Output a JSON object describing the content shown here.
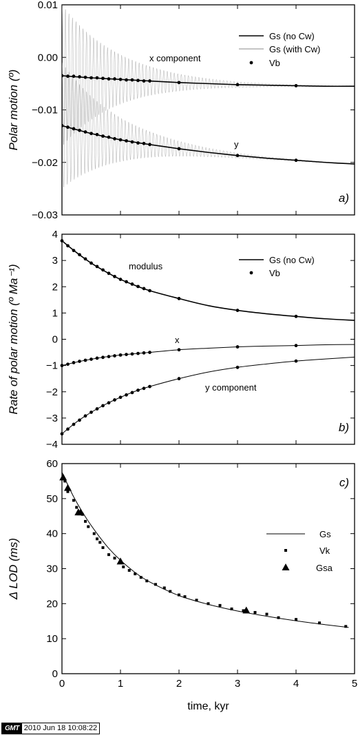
{
  "stamp": {
    "logo": "GMT",
    "text": "2010 Jun 18 10:08:22"
  },
  "colors": {
    "gs_no_cw": "#000000",
    "gs_with_cw": "#a0a0a0",
    "points": "#000000"
  },
  "chart_data": [
    {
      "type": "line",
      "panel_label": "a)",
      "ylabel": "Polar motion (º)",
      "xlabel": "",
      "xlim": [
        0,
        5
      ],
      "ylim": [
        -0.03,
        0.01
      ],
      "yticks": [
        0.01,
        0.0,
        -0.01,
        -0.02,
        -0.03
      ],
      "ytick_labels": [
        "0.01",
        "0.00",
        "−0.01",
        "−0.02",
        "−0.03"
      ],
      "xticks": [
        0,
        1,
        2,
        3,
        4,
        5
      ],
      "grid": false,
      "legend_position": "top-right",
      "legend": [
        "Gs (no Cw)",
        "Gs (with Cw)",
        "Vb"
      ],
      "annotations": [
        "x component",
        "y"
      ],
      "series": [
        {
          "name": "Gs (no Cw)",
          "component": "x",
          "x": [
            0,
            0.5,
            1,
            1.5,
            2,
            2.5,
            3,
            3.5,
            4,
            4.5,
            5
          ],
          "values": [
            -0.0035,
            -0.0039,
            -0.0042,
            -0.0045,
            -0.0048,
            -0.005,
            -0.0052,
            -0.0053,
            -0.0054,
            -0.0055,
            -0.0055
          ]
        },
        {
          "name": "Gs (no Cw)",
          "component": "y",
          "x": [
            0,
            0.5,
            1,
            1.5,
            2,
            2.5,
            3,
            3.5,
            4,
            4.5,
            5
          ],
          "values": [
            -0.013,
            -0.0145,
            -0.0157,
            -0.0166,
            -0.0174,
            -0.0181,
            -0.0187,
            -0.0192,
            -0.0196,
            -0.02,
            -0.0203
          ]
        },
        {
          "name": "Gs (with Cw)",
          "component": "x",
          "envelope_start": [
            -0.017,
            0.0095
          ],
          "decay_tau_kyr": 0.95,
          "oscillation_period_kyr": 0.06
        },
        {
          "name": "Gs (with Cw)",
          "component": "y",
          "envelope_start": [
            -0.025,
            -0.001
          ],
          "decay_tau_kyr": 0.95,
          "oscillation_period_kyr": 0.06
        },
        {
          "name": "Vb",
          "component": "x",
          "x": [
            0,
            0.1,
            0.2,
            0.3,
            0.4,
            0.5,
            0.6,
            0.7,
            0.8,
            0.9,
            1.0,
            1.1,
            1.2,
            1.3,
            1.4,
            1.5,
            2,
            3,
            4
          ],
          "values": [
            -0.0035,
            -0.0036,
            -0.0036,
            -0.0037,
            -0.0038,
            -0.0039,
            -0.0039,
            -0.004,
            -0.0041,
            -0.0041,
            -0.0042,
            -0.0043,
            -0.0043,
            -0.0044,
            -0.0045,
            -0.0045,
            -0.0048,
            -0.0052,
            -0.0054
          ]
        },
        {
          "name": "Vb",
          "component": "y",
          "x": [
            0,
            0.1,
            0.2,
            0.3,
            0.4,
            0.5,
            0.6,
            0.7,
            0.8,
            0.9,
            1.0,
            1.1,
            1.2,
            1.3,
            1.4,
            1.5,
            2,
            3,
            4
          ],
          "values": [
            -0.013,
            -0.0133,
            -0.0136,
            -0.0139,
            -0.0142,
            -0.0145,
            -0.0147,
            -0.015,
            -0.0152,
            -0.0155,
            -0.0157,
            -0.0159,
            -0.0161,
            -0.0163,
            -0.0164,
            -0.0166,
            -0.0174,
            -0.0187,
            -0.0196
          ]
        }
      ]
    },
    {
      "type": "line",
      "panel_label": "b)",
      "ylabel": "Rate of polar motion (º Ma⁻¹)",
      "xlabel": "",
      "xlim": [
        0,
        5
      ],
      "ylim": [
        -4,
        4
      ],
      "yticks": [
        4,
        3,
        2,
        1,
        0,
        -1,
        -2,
        -3,
        -4
      ],
      "ytick_labels": [
        "4",
        "3",
        "2",
        "1",
        "0",
        "−1",
        "−2",
        "−3",
        "−4"
      ],
      "xticks": [
        0,
        1,
        2,
        3,
        4,
        5
      ],
      "grid": false,
      "legend_position": "top-right",
      "legend": [
        "Gs (no Cw)",
        "Vb"
      ],
      "annotations": [
        "modulus",
        "x",
        "y component"
      ],
      "series": [
        {
          "name": "Gs (no Cw)",
          "component": "modulus",
          "x": [
            0,
            0.25,
            0.5,
            0.75,
            1,
            1.25,
            1.5,
            2,
            2.5,
            3,
            3.5,
            4,
            4.5,
            5
          ],
          "values": [
            3.75,
            3.3,
            2.9,
            2.57,
            2.28,
            2.05,
            1.85,
            1.55,
            1.28,
            1.1,
            0.97,
            0.87,
            0.78,
            0.72
          ]
        },
        {
          "name": "Gs (no Cw)",
          "component": "x",
          "x": [
            0,
            0.25,
            0.5,
            0.75,
            1,
            1.5,
            2,
            2.5,
            3,
            3.5,
            4,
            4.5,
            5
          ],
          "values": [
            -1.0,
            -0.87,
            -0.76,
            -0.67,
            -0.6,
            -0.5,
            -0.4,
            -0.34,
            -0.29,
            -0.26,
            -0.24,
            -0.21,
            -0.2
          ]
        },
        {
          "name": "Gs (no Cw)",
          "component": "y component",
          "x": [
            0,
            0.25,
            0.5,
            0.75,
            1,
            1.25,
            1.5,
            2,
            2.5,
            3,
            3.5,
            4,
            4.5,
            5
          ],
          "values": [
            -3.6,
            -3.15,
            -2.78,
            -2.47,
            -2.21,
            -1.98,
            -1.8,
            -1.5,
            -1.25,
            -1.07,
            -0.94,
            -0.83,
            -0.75,
            -0.68
          ]
        },
        {
          "name": "Vb",
          "component": "modulus",
          "x": [
            0,
            0.1,
            0.2,
            0.3,
            0.4,
            0.5,
            0.6,
            0.7,
            0.8,
            0.9,
            1.0,
            1.1,
            1.2,
            1.3,
            1.4,
            1.5,
            2,
            3,
            4
          ],
          "values": [
            3.75,
            3.56,
            3.38,
            3.22,
            3.06,
            2.9,
            2.77,
            2.64,
            2.51,
            2.39,
            2.28,
            2.19,
            2.1,
            2.01,
            1.93,
            1.85,
            1.55,
            1.1,
            0.87
          ]
        },
        {
          "name": "Vb",
          "component": "x",
          "x": [
            0,
            0.1,
            0.2,
            0.3,
            0.4,
            0.5,
            0.6,
            0.7,
            0.8,
            0.9,
            1.0,
            1.1,
            1.2,
            1.3,
            1.4,
            1.5,
            2,
            3,
            4
          ],
          "values": [
            -1.0,
            -0.95,
            -0.89,
            -0.84,
            -0.8,
            -0.76,
            -0.72,
            -0.69,
            -0.66,
            -0.63,
            -0.6,
            -0.58,
            -0.56,
            -0.54,
            -0.52,
            -0.5,
            -0.4,
            -0.29,
            -0.24
          ]
        },
        {
          "name": "Vb",
          "component": "y component",
          "x": [
            0,
            0.1,
            0.2,
            0.3,
            0.4,
            0.5,
            0.6,
            0.7,
            0.8,
            0.9,
            1.0,
            1.1,
            1.2,
            1.3,
            1.4,
            1.5,
            2,
            3,
            4
          ],
          "values": [
            -3.6,
            -3.42,
            -3.24,
            -3.08,
            -2.92,
            -2.78,
            -2.65,
            -2.53,
            -2.42,
            -2.31,
            -2.21,
            -2.12,
            -2.03,
            -1.94,
            -1.87,
            -1.8,
            -1.5,
            -1.07,
            -0.83
          ]
        }
      ]
    },
    {
      "type": "line",
      "panel_label": "c)",
      "ylabel": "Δ LOD (ms)",
      "xlabel": "time, kyr",
      "xlim": [
        0,
        5
      ],
      "ylim": [
        0,
        60
      ],
      "yticks": [
        60,
        50,
        40,
        30,
        20,
        10,
        0
      ],
      "ytick_labels": [
        "60",
        "50",
        "40",
        "30",
        "20",
        "10",
        "0"
      ],
      "xticks": [
        0,
        1,
        2,
        3,
        4,
        5
      ],
      "xtick_labels": [
        "0",
        "1",
        "2",
        "3",
        "4",
        "5"
      ],
      "grid": false,
      "legend_position": "right",
      "legend": [
        "Gs",
        "Vk",
        "Gsa"
      ],
      "series": [
        {
          "name": "Gs",
          "x": [
            0,
            0.2,
            0.4,
            0.6,
            0.8,
            1.0,
            1.25,
            1.5,
            2,
            2.5,
            3,
            3.5,
            4,
            4.5,
            4.9
          ],
          "values": [
            57.5,
            50.5,
            44.8,
            40.0,
            35.8,
            32.4,
            28.9,
            26.2,
            22.3,
            19.8,
            17.9,
            16.4,
            15.1,
            14.0,
            13.2
          ]
        },
        {
          "name": "Vk",
          "x": [
            0.05,
            0.1,
            0.2,
            0.25,
            0.35,
            0.4,
            0.45,
            0.55,
            0.6,
            0.65,
            0.7,
            0.8,
            0.9,
            1.05,
            1.15,
            1.25,
            1.35,
            1.45,
            1.6,
            1.75,
            1.85,
            2.0,
            2.1,
            2.3,
            2.5,
            2.7,
            2.9,
            3.1,
            3.3,
            3.5,
            3.7,
            4.0,
            4.4,
            4.85
          ],
          "values": [
            55.0,
            52.0,
            49.5,
            47.5,
            45.5,
            43.5,
            42.0,
            40.0,
            38.5,
            37.5,
            36.0,
            34.0,
            33.0,
            30.5,
            29.5,
            28.5,
            27.5,
            26.5,
            25.5,
            24.5,
            23.5,
            22.5,
            22.0,
            21.0,
            20.0,
            19.5,
            18.5,
            18.0,
            17.5,
            17.0,
            16.0,
            15.5,
            14.5,
            13.5
          ]
        },
        {
          "name": "Gsa",
          "x": [
            0.02,
            0.1,
            0.28,
            0.32,
            1.0,
            3.15
          ],
          "values": [
            56.0,
            53.0,
            46.0,
            46.0,
            32.0,
            18.0
          ]
        }
      ]
    }
  ]
}
